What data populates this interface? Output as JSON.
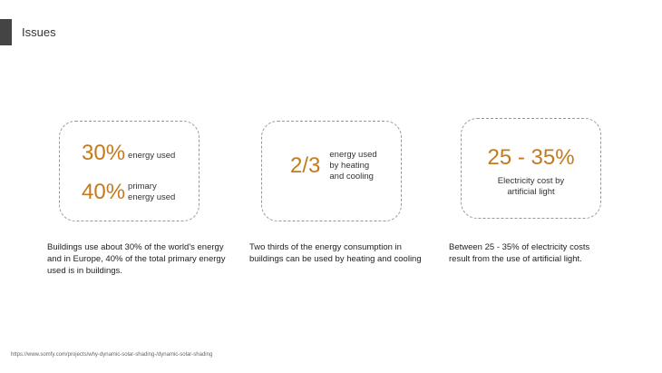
{
  "title": "Issues",
  "cards": [
    {
      "stats": [
        {
          "value": "30%",
          "label": "energy used"
        },
        {
          "value": "40%",
          "label": "primary energy used"
        }
      ],
      "description": "Buildings use about 30% of the world's energy and in Europe, 40% of the total primary energy used is in buildings."
    },
    {
      "stats": [
        {
          "value": "2/3",
          "label": "energy used by heating and cooling"
        }
      ],
      "description": "Two thirds of the energy consumption in buildings can be used by heating and cooling"
    },
    {
      "stats": [
        {
          "value": "25 - 35%",
          "label": "Electricity cost by artificial light"
        }
      ],
      "description": "Between 25 - 35% of electricity costs result from the use of artificial light."
    }
  ],
  "source": "https://www.somfy.com/projects/why-dynamic-solar-shading-/dynamic-solar-shading",
  "colors": {
    "accent": "#c47a1c"
  }
}
